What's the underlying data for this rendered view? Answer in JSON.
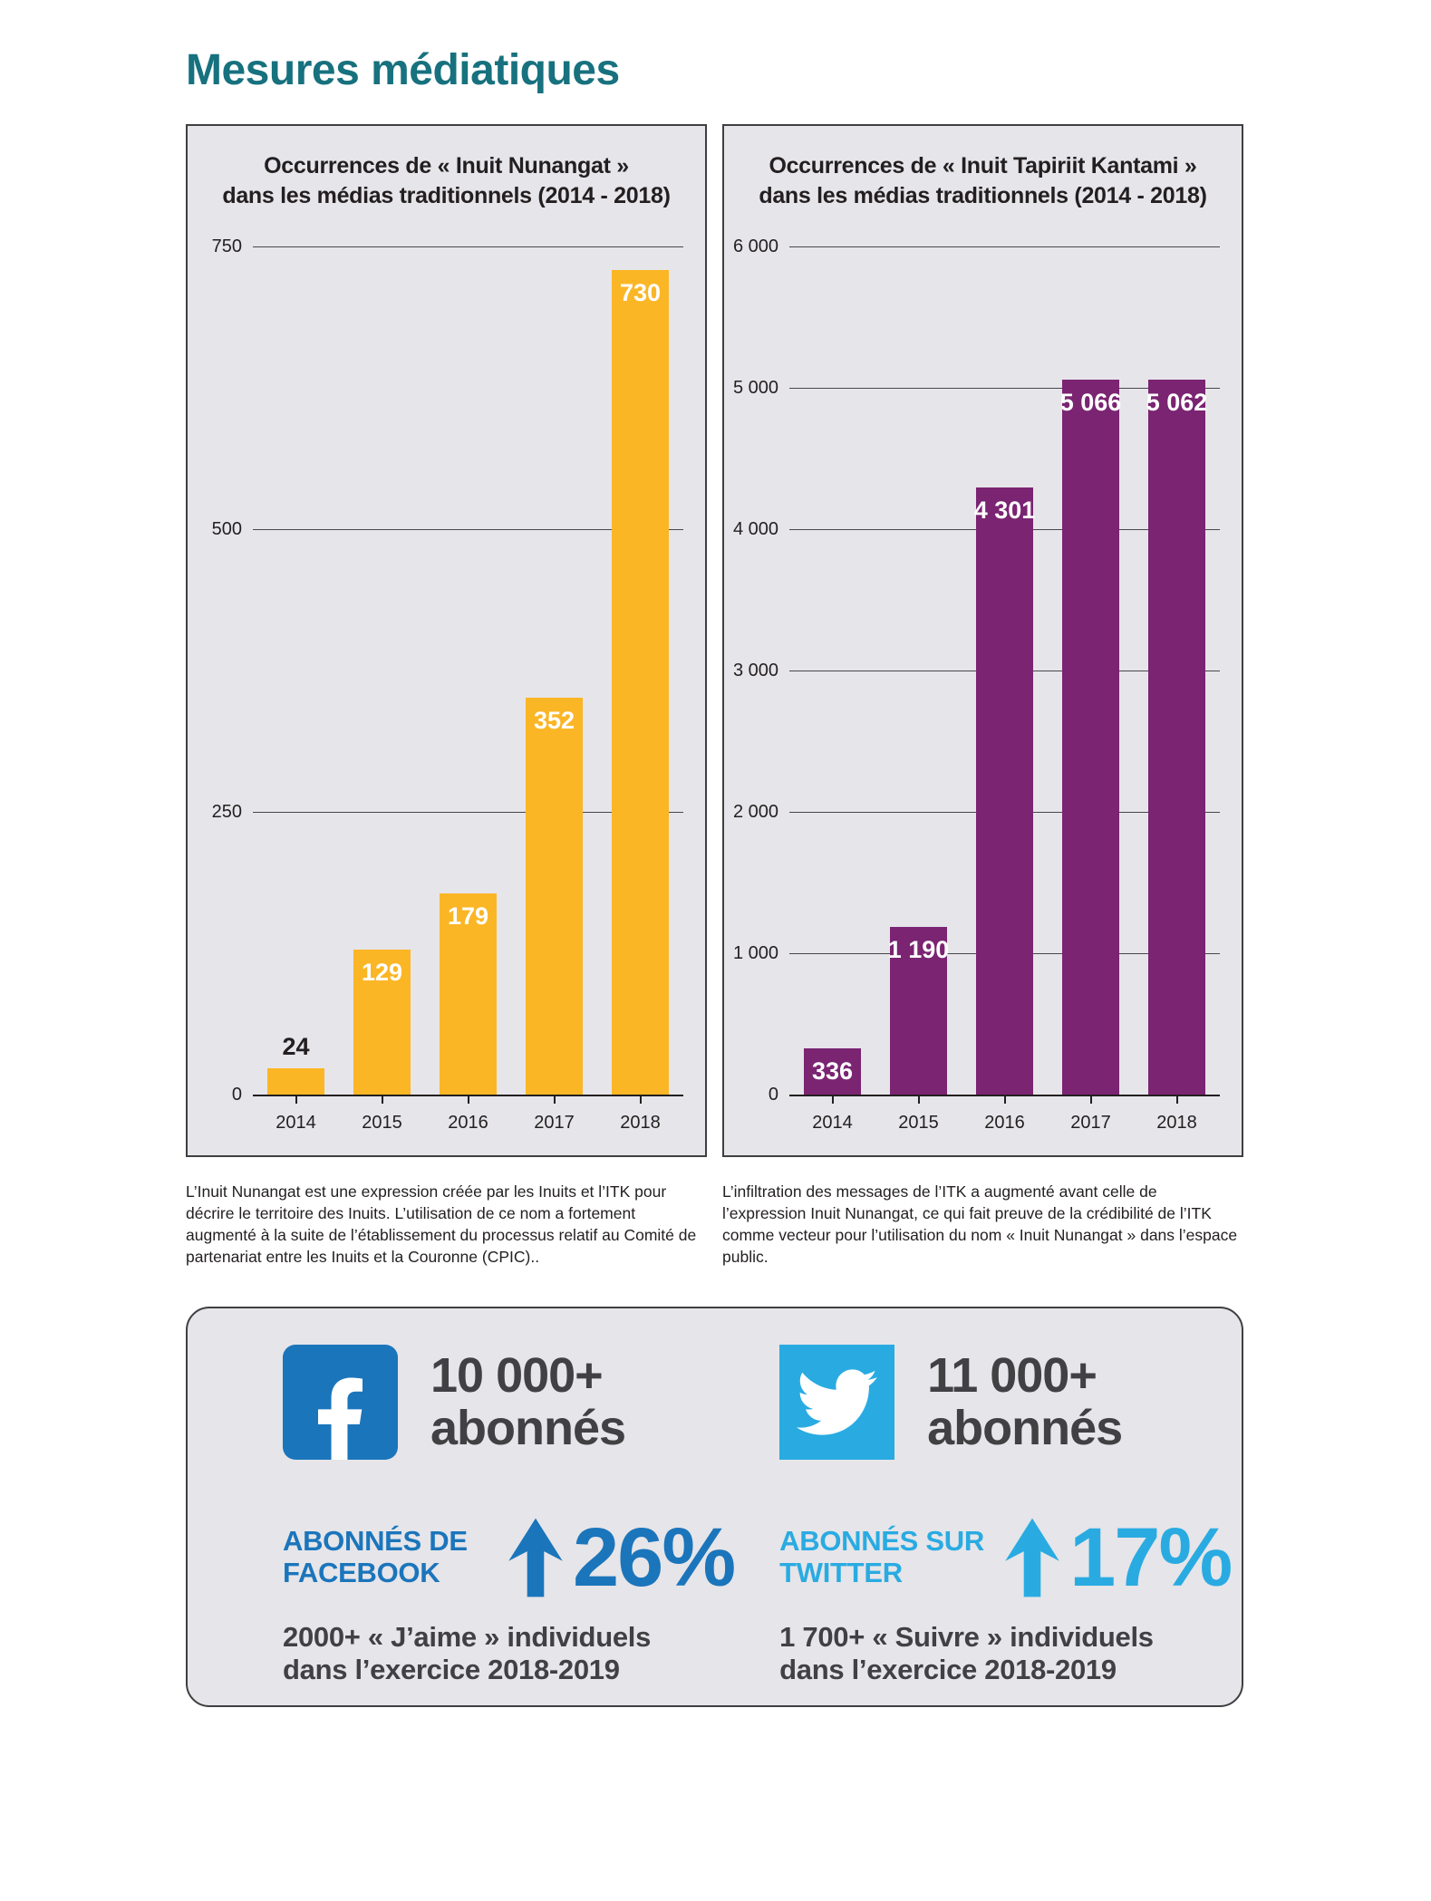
{
  "page": {
    "title": "Mesures médiatiques",
    "title_color": "#17717e"
  },
  "chart_data": [
    {
      "type": "bar",
      "title": "Occurrences de « Inuit Nunangat » dans les médias traditionnels (2014 - 2018)",
      "title_lines": [
        "Occurrences de « Inuit Nunangat »",
        "dans les médias traditionnels (2014 - 2018)"
      ],
      "categories": [
        "2014",
        "2015",
        "2016",
        "2017",
        "2018"
      ],
      "values": [
        24,
        129,
        179,
        352,
        730
      ],
      "value_labels": [
        "24",
        "129",
        "179",
        "352",
        "730"
      ],
      "label_positions": [
        "above",
        "inside",
        "inside",
        "inside",
        "inside"
      ],
      "ylim": [
        0,
        750
      ],
      "y_ticks": [
        {
          "v": 0,
          "label": "0"
        },
        {
          "v": 250,
          "label": "250"
        },
        {
          "v": 500,
          "label": "500"
        },
        {
          "v": 750,
          "label": "750"
        }
      ],
      "grid": true,
      "legend": false,
      "bar_color": "#fbb626",
      "outside_label_color": "#231f20",
      "caption": "L’Inuit Nunangat est une expression créée par les Inuits et l’ITK pour décrire le territoire des Inuits. L’utilisation de ce nom a fortement augmenté à la suite de l’établissement du processus relatif au Comité de partenariat entre les Inuits et la Couronne (CPIC).."
    },
    {
      "type": "bar",
      "title": "Occurrences de « Inuit Tapiriit Kantami » dans les médias traditionnels (2014 - 2018)",
      "title_lines": [
        "Occurrences de « Inuit Tapiriit Kantami »",
        "dans les médias traditionnels (2014 - 2018)"
      ],
      "categories": [
        "2014",
        "2015",
        "2016",
        "2017",
        "2018"
      ],
      "values": [
        336,
        1190,
        4301,
        5066,
        5062
      ],
      "value_labels": [
        "336",
        "1 190",
        "4 301",
        "5 066",
        "5 062"
      ],
      "label_positions": [
        "inside",
        "inside",
        "inside",
        "inside",
        "inside"
      ],
      "ylim": [
        0,
        6000
      ],
      "y_ticks": [
        {
          "v": 0,
          "label": "0"
        },
        {
          "v": 1000,
          "label": "1 000"
        },
        {
          "v": 2000,
          "label": "2 000"
        },
        {
          "v": 3000,
          "label": "3 000"
        },
        {
          "v": 4000,
          "label": "4 000"
        },
        {
          "v": 5000,
          "label": "5 000"
        },
        {
          "v": 6000,
          "label": "6 000"
        }
      ],
      "grid": true,
      "legend": false,
      "bar_color": "#7a2472",
      "outside_label_color": "#231f20",
      "caption": "L’infiltration des messages de l’ITK a augmenté avant celle de l’expression Inuit Nunangat, ce qui fait preuve de la crédibilité de l’ITK comme vecteur pour l’utilisation du nom « Inuit Nunangat » dans l’espace public."
    }
  ],
  "social": {
    "facebook": {
      "icon": "facebook-icon",
      "color": "#1b75bb",
      "followers_line1": "10 000+",
      "followers_line2": "abonnés",
      "label_line1": "ABONNÉS DE",
      "label_line2": "FACEBOOK",
      "percent": "26%",
      "detail_line1": "2000+ « J’aime » individuels",
      "detail_line2": "dans l’exercice 2018-2019"
    },
    "twitter": {
      "icon": "twitter-icon",
      "color": "#29abe2",
      "followers_line1": "11 000+",
      "followers_line2": "abonnés",
      "label_line1": "ABONNÉS SUR",
      "label_line2": "TWITTER",
      "percent": "17%",
      "detail_line1": "1 700+ « Suivre » individuels",
      "detail_line2": "dans l’exercice 2018-2019"
    }
  }
}
